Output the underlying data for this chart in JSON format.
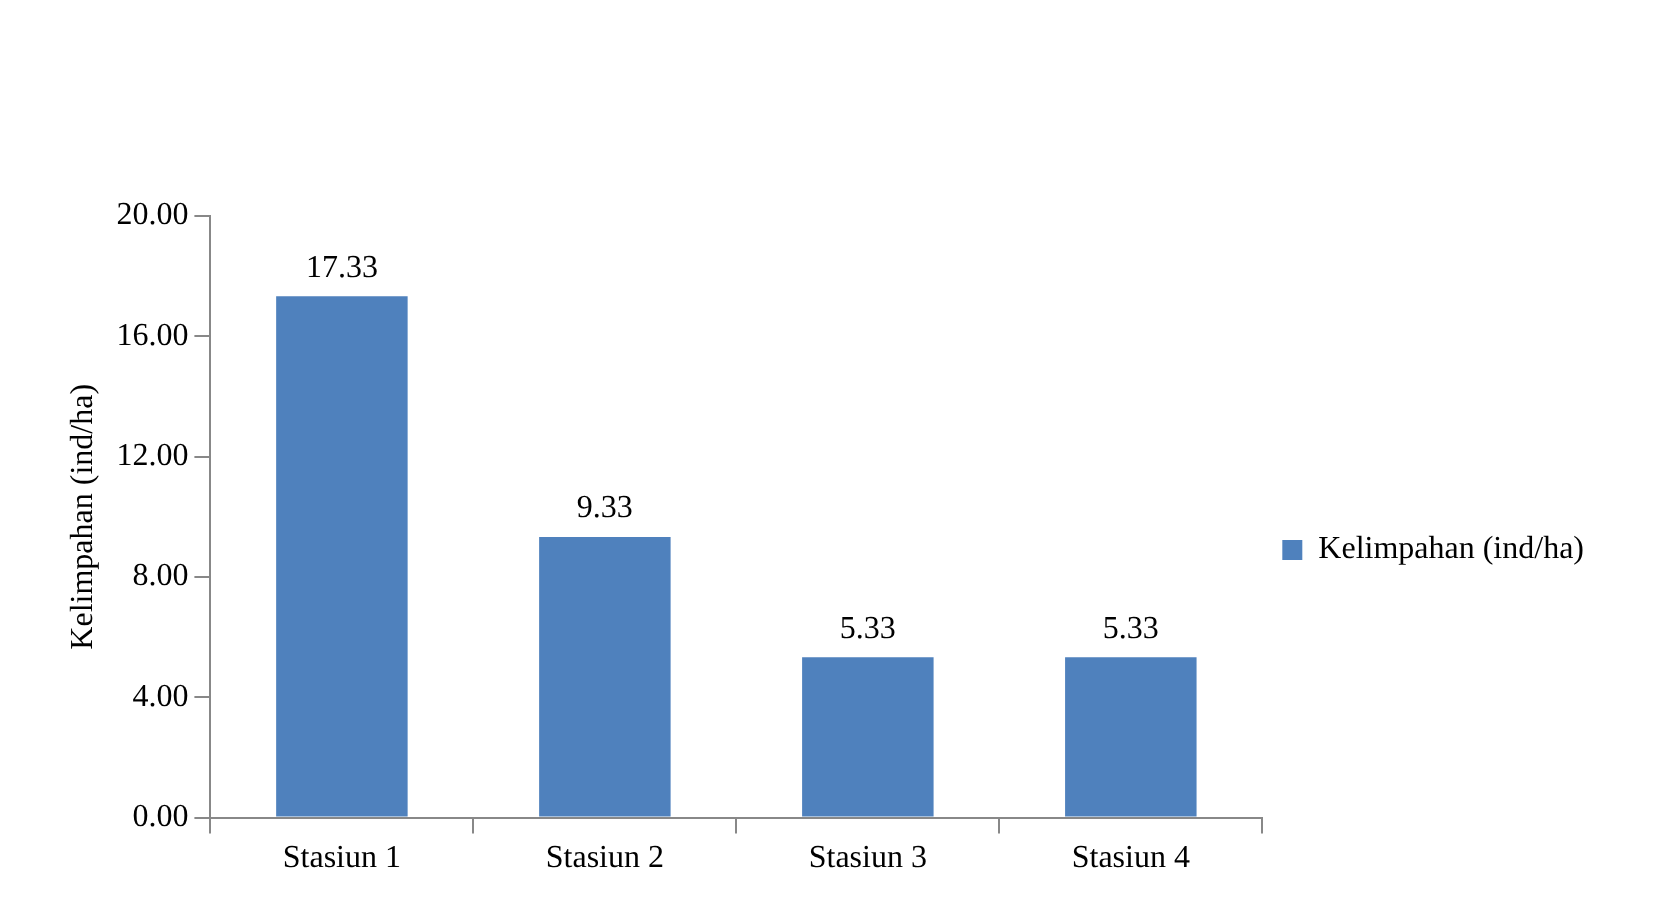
{
  "chart_data": {
    "type": "bar",
    "ylabel": "Kelimpahan (ind/ha)",
    "categories": [
      "Stasiun 1",
      "Stasiun 2",
      "Stasiun 3",
      "Stasiun 4"
    ],
    "series": [
      {
        "name": "Kelimpahan (ind/ha)",
        "color": "#4f81bd",
        "values": [
          17.33,
          9.33,
          5.33,
          5.33
        ]
      }
    ],
    "ylim": [
      0,
      20
    ],
    "yticks": [
      {
        "value": 0,
        "label": "0.00"
      },
      {
        "value": 4,
        "label": "4.00"
      },
      {
        "value": 8,
        "label": "8.00"
      },
      {
        "value": 12,
        "label": "12.00"
      },
      {
        "value": 16,
        "label": "16.00"
      },
      {
        "value": 20,
        "label": "20.00"
      }
    ],
    "data_labels": true,
    "legend": "right"
  }
}
